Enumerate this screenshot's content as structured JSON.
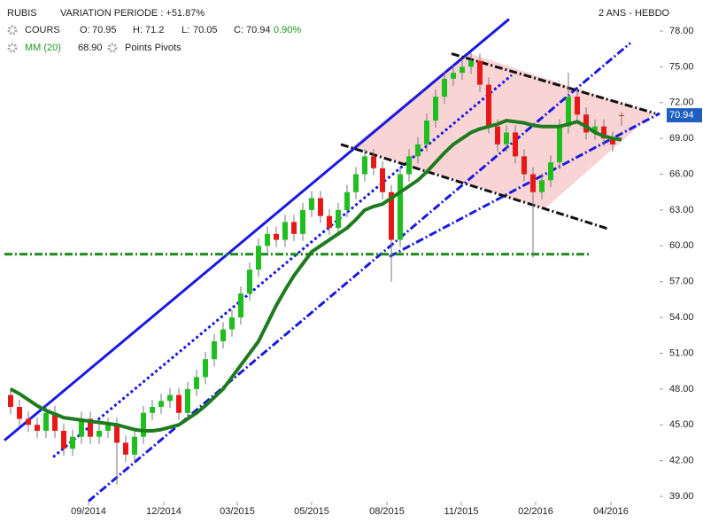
{
  "chart_data": {
    "type": "candlestick",
    "header": {
      "symbol": "RUBIS",
      "variation": "VARIATION PERIODE : +51.87%",
      "period": "2 ANS - HEBDO",
      "price_name": "COURS",
      "open_label": "O:",
      "open": "70.95",
      "high_label": "H:",
      "high": "71.2",
      "low_label": "L:",
      "low": "70.05",
      "close_label": "C:",
      "close": "70.94",
      "change": "0.90%",
      "ma_name": "MM (20)",
      "ma_value": "68.90",
      "pivots": "Points Pivots"
    },
    "up_color": "#1fbf1f",
    "down_color": "#e81818",
    "ohlc": [
      [
        47.5,
        48.1,
        45.9,
        46.5
      ],
      [
        46.5,
        47.1,
        44.9,
        45.5
      ],
      [
        45.5,
        46.1,
        44.4,
        45
      ],
      [
        45,
        45.6,
        43.9,
        44.5
      ],
      [
        44.5,
        46.6,
        43.9,
        46
      ],
      [
        46,
        46.6,
        43.9,
        44.5
      ],
      [
        44.5,
        45.1,
        42.4,
        43
      ],
      [
        43,
        44.6,
        42.4,
        44
      ],
      [
        44,
        46.1,
        43.4,
        45.5
      ],
      [
        45.5,
        46.1,
        43.4,
        44
      ],
      [
        44,
        45.1,
        43.4,
        44.5
      ],
      [
        44.5,
        45.6,
        43.9,
        45
      ],
      [
        45,
        45.6,
        40,
        43.5
      ],
      [
        43.5,
        44.1,
        41.9,
        42.5
      ],
      [
        42.5,
        44.6,
        41.9,
        44
      ],
      [
        44,
        46.6,
        43.4,
        46
      ],
      [
        46,
        47.1,
        45.4,
        46.5
      ],
      [
        46.5,
        47.6,
        45.9,
        47
      ],
      [
        47,
        48.1,
        46.4,
        47.5
      ],
      [
        47.5,
        48.1,
        45.4,
        46
      ],
      [
        46,
        48.6,
        45.4,
        48
      ],
      [
        48,
        49.6,
        47.4,
        49
      ],
      [
        49,
        51.1,
        48.4,
        50.5
      ],
      [
        50.5,
        52.6,
        49.9,
        52
      ],
      [
        52,
        53.6,
        51.4,
        53
      ],
      [
        53,
        54.6,
        52.4,
        54
      ],
      [
        54,
        56.6,
        53.4,
        56
      ],
      [
        56,
        58.6,
        55.4,
        58
      ],
      [
        58,
        60.6,
        57.4,
        60
      ],
      [
        60,
        61.6,
        59.4,
        61
      ],
      [
        61,
        61.6,
        59.9,
        60.5
      ],
      [
        60.5,
        62.6,
        59.9,
        62
      ],
      [
        62,
        62.6,
        60.4,
        61
      ],
      [
        61,
        63.6,
        60.4,
        63
      ],
      [
        63,
        64.6,
        62.4,
        64
      ],
      [
        64,
        64.6,
        61.9,
        62.5
      ],
      [
        62.5,
        63.1,
        60.9,
        61.5
      ],
      [
        61.5,
        63.6,
        60.9,
        63
      ],
      [
        63,
        65.1,
        62.4,
        64.5
      ],
      [
        64.5,
        66.6,
        63.9,
        66
      ],
      [
        66,
        68.1,
        65.4,
        67.5
      ],
      [
        67.5,
        68.1,
        65.9,
        66.5
      ],
      [
        66.5,
        67.1,
        63.9,
        64.5
      ],
      [
        64.5,
        65.1,
        57,
        60.5
      ],
      [
        60.5,
        66.6,
        59.9,
        66
      ],
      [
        66,
        68.1,
        65.4,
        67.5
      ],
      [
        67.5,
        69.1,
        66.9,
        68.5
      ],
      [
        68.5,
        71.1,
        67.9,
        70.5
      ],
      [
        70.5,
        73.1,
        69.9,
        72.5
      ],
      [
        72.5,
        74.6,
        71.9,
        74
      ],
      [
        74,
        75.1,
        73.4,
        74.5
      ],
      [
        74.5,
        75.6,
        73.9,
        75
      ],
      [
        75,
        76.2,
        74.4,
        75.5
      ],
      [
        75.5,
        76.1,
        72.9,
        73.5
      ],
      [
        73.5,
        74.1,
        69.4,
        70
      ],
      [
        70,
        70.6,
        67.9,
        68.5
      ],
      [
        68.5,
        70.1,
        67.9,
        69.5
      ],
      [
        69.5,
        70.1,
        66.9,
        67.5
      ],
      [
        67.5,
        68.1,
        65.4,
        66
      ],
      [
        66,
        66.6,
        59,
        64.5
      ],
      [
        64.5,
        66.1,
        63.9,
        65.5
      ],
      [
        65.5,
        67.6,
        64.9,
        67
      ],
      [
        67,
        70.6,
        66.4,
        70
      ],
      [
        70,
        74.5,
        69.4,
        72.5
      ],
      [
        72.5,
        73.1,
        70.4,
        71
      ],
      [
        71,
        71.6,
        68.9,
        69.5
      ],
      [
        69.5,
        70.6,
        68.9,
        70
      ],
      [
        70,
        70.6,
        68.4,
        69
      ],
      [
        69,
        69.6,
        67.9,
        68.5
      ],
      [
        70.95,
        71.2,
        70.05,
        70.94
      ]
    ],
    "ma": {
      "color": "#1e7b1e",
      "values": [
        48,
        47.6,
        47.1,
        46.6,
        46.2,
        45.9,
        45.6,
        45.5,
        45.4,
        45.3,
        45.2,
        45.1,
        45,
        44.8,
        44.6,
        44.5,
        44.5,
        44.6,
        44.8,
        45,
        45.5,
        46,
        46.6,
        47.3,
        48,
        49,
        50,
        51,
        52,
        53.5,
        55,
        56.3,
        57.5,
        58.5,
        59.5,
        60,
        60.5,
        61,
        61.5,
        62.2,
        63,
        63.3,
        63.5,
        64,
        64.5,
        65,
        65.5,
        66.2,
        67,
        67.8,
        68.5,
        69,
        69.5,
        69.8,
        70,
        70.2,
        70.5,
        70.4,
        70.3,
        70.1,
        70,
        70,
        70,
        70.2,
        70.4,
        70,
        69.5,
        69.2,
        69,
        68.9
      ]
    },
    "zone": {
      "color": "#f7c6c6",
      "points": [
        [
          38.6,
          68.3
        ],
        [
          51.5,
          76.2
        ],
        [
          72.6,
          71.1
        ],
        [
          60.3,
          63.1
        ]
      ]
    },
    "trendlines": [
      {
        "color": "#1a1ae0",
        "dash": "solid",
        "points": [
          [
            -0.7,
            43.7
          ],
          [
            56.3,
            79
          ]
        ]
      },
      {
        "color": "#1a1ae0",
        "dash": "dot",
        "points": [
          [
            4.8,
            42.3
          ],
          [
            56.6,
            74.3
          ]
        ]
      },
      {
        "color": "#1a1ae0",
        "dash": "dashdot",
        "points": [
          [
            8.8,
            38.6
          ],
          [
            70,
            77
          ]
        ]
      },
      {
        "color": "#1a1ae0",
        "dash": "dashdot",
        "points": [
          [
            42.8,
            59.1
          ],
          [
            73.3,
            71.1
          ]
        ]
      },
      {
        "color": "#111111",
        "dash": "dashdot",
        "points": [
          [
            49.8,
            76.1
          ],
          [
            72.8,
            71.1
          ]
        ]
      },
      {
        "color": "#111111",
        "dash": "dashdot",
        "points": [
          [
            37.3,
            68.5
          ],
          [
            67.6,
            61.4
          ]
        ]
      },
      {
        "color": "#1a8a1a",
        "dash": "dashdot",
        "points": [
          [
            -0.7,
            59.3
          ],
          [
            65.6,
            59.3
          ]
        ]
      }
    ],
    "xlim": [
      -1.2,
      73.3
    ],
    "ylim": [
      39,
      78
    ],
    "xticks": [
      {
        "value": 8.8,
        "label": "09/2014"
      },
      {
        "value": 17.3,
        "label": "12/2014"
      },
      {
        "value": 25.6,
        "label": "03/2015"
      },
      {
        "value": 34,
        "label": "05/2015"
      },
      {
        "value": 42.5,
        "label": "08/2015"
      },
      {
        "value": 50.9,
        "label": "11/2015"
      },
      {
        "value": 59.3,
        "label": "02/2016"
      },
      {
        "value": 67.8,
        "label": "04/2016"
      }
    ],
    "yticks": [
      {
        "value": 39,
        "label": "39.00"
      },
      {
        "value": 42,
        "label": "42.00"
      },
      {
        "value": 45,
        "label": "45.00"
      },
      {
        "value": 48,
        "label": "48.00"
      },
      {
        "value": 51,
        "label": "51.00"
      },
      {
        "value": 54,
        "label": "54.00"
      },
      {
        "value": 57,
        "label": "57.00"
      },
      {
        "value": 60,
        "label": "60.00"
      },
      {
        "value": 63,
        "label": "63.00"
      },
      {
        "value": 66,
        "label": "66.00"
      },
      {
        "value": 69,
        "label": "69.00"
      },
      {
        "value": 72,
        "label": "72.00"
      },
      {
        "value": 75,
        "label": "75.00"
      },
      {
        "value": 78,
        "label": "78.00"
      }
    ]
  }
}
